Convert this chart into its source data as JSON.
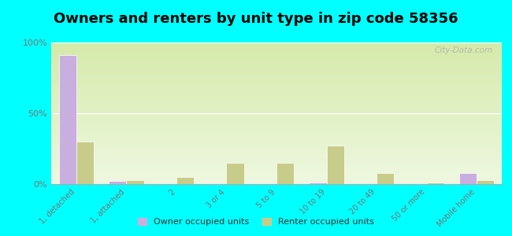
{
  "title": "Owners and renters by unit type in zip code 58356",
  "categories": [
    "1, detached",
    "1, attached",
    "2",
    "3 or 4",
    "5 to 9",
    "10 to 19",
    "20 to 49",
    "50 or more",
    "Mobile home"
  ],
  "owner_values": [
    91,
    2,
    0,
    0,
    0,
    1,
    0,
    0,
    8
  ],
  "renter_values": [
    30,
    3,
    5,
    15,
    15,
    27,
    8,
    1,
    3
  ],
  "owner_color": "#c9aee0",
  "renter_color": "#c8cc8a",
  "figure_bg": "#00ffff",
  "title_fontsize": 13,
  "ylim": [
    0,
    100
  ],
  "yticks": [
    0,
    50,
    100
  ],
  "ytick_labels": [
    "0%",
    "50%",
    "100%"
  ],
  "watermark": "City-Data.com",
  "legend_owner": "Owner occupied units",
  "legend_renter": "Renter occupied units",
  "bg_color_top": "#d6eaaa",
  "bg_color_bottom": "#eef8e0"
}
